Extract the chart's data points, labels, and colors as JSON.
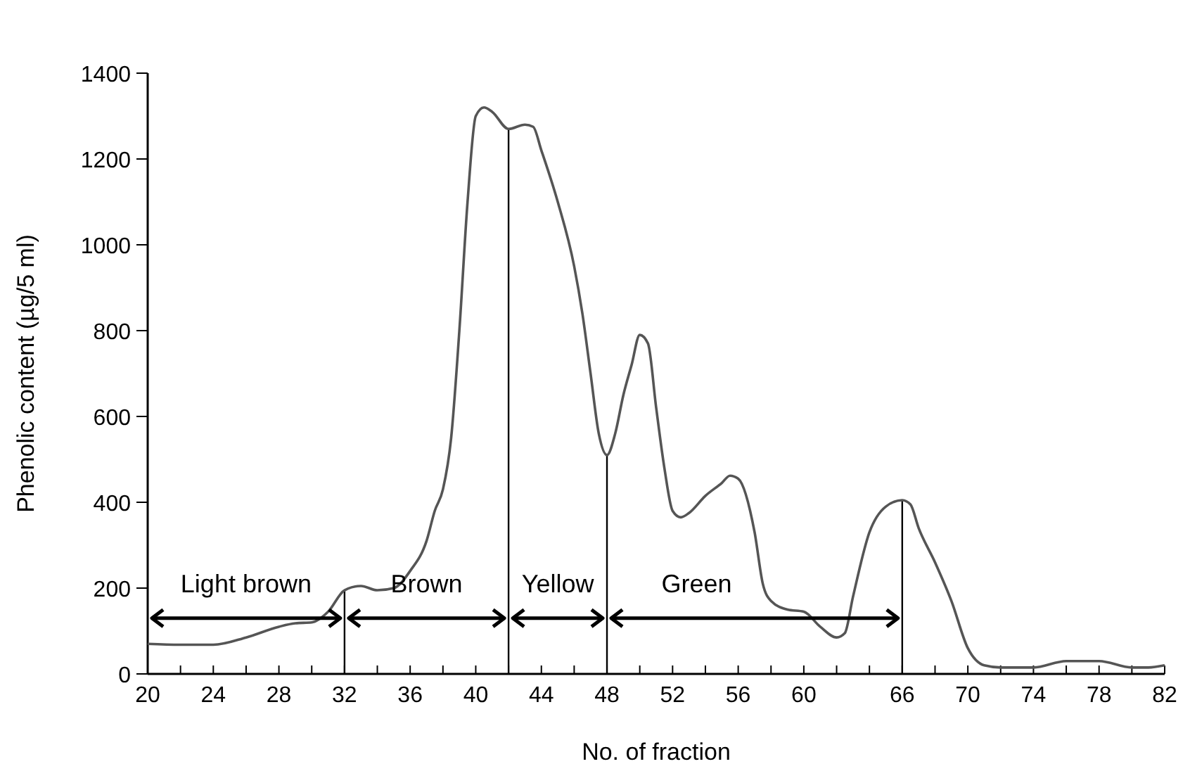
{
  "chart_data": {
    "type": "line",
    "xlabel": "No. of fraction",
    "ylabel": "Phenolic content (µg/5 ml)",
    "xlim": [
      20,
      82
    ],
    "ylim": [
      0,
      1400
    ],
    "xticks": [
      20,
      {
        "value": 22,
        "label": null
      },
      24,
      {
        "value": 26,
        "label": null
      },
      28,
      {
        "value": 30,
        "label": null
      },
      32,
      {
        "value": 34,
        "label": null
      },
      36,
      {
        "value": 38,
        "label": null
      },
      40,
      {
        "value": 42,
        "label": null
      },
      44,
      {
        "value": 46,
        "label": null
      },
      48,
      {
        "value": 50,
        "label": null
      },
      52,
      {
        "value": 54,
        "label": null
      },
      56,
      {
        "value": 58,
        "label": null
      },
      60,
      {
        "value": 62,
        "label": null
      },
      {
        "value": 64,
        "label": null
      },
      66,
      {
        "value": 68,
        "label": null
      },
      70,
      {
        "value": 72,
        "label": null
      },
      74,
      {
        "value": 76,
        "label": null
      },
      78,
      {
        "value": 80,
        "label": null
      },
      82
    ],
    "yticks": [
      0,
      200,
      400,
      600,
      800,
      1000,
      1200,
      1400
    ],
    "grid": false,
    "marker": "none",
    "line_style": "solid",
    "series": [
      {
        "color": "#555555",
        "x": [
          20,
          22,
          24,
          26,
          28,
          29,
          30,
          31,
          32,
          33,
          34,
          35,
          36,
          37,
          37.5,
          38,
          38.5,
          39,
          39.5,
          40,
          40.5,
          41,
          42,
          43,
          43.5,
          44,
          45,
          46,
          46.5,
          47,
          47.5,
          48,
          48.5,
          49,
          49.5,
          50,
          50.5,
          51,
          51.5,
          52,
          52.5,
          53,
          54,
          55,
          55.5,
          56,
          57,
          57.5,
          58,
          59,
          60,
          61,
          62,
          62.5,
          63,
          64,
          65,
          66,
          66.5,
          67,
          68,
          69,
          70,
          71,
          72,
          74,
          76,
          78,
          80,
          81,
          82
        ],
        "values": [
          70,
          68,
          68,
          85,
          110,
          118,
          120,
          145,
          195,
          205,
          195,
          200,
          240,
          310,
          380,
          430,
          550,
          800,
          1100,
          1300,
          1320,
          1310,
          1270,
          1280,
          1275,
          1220,
          1100,
          950,
          840,
          700,
          560,
          510,
          560,
          650,
          720,
          790,
          770,
          620,
          480,
          380,
          365,
          375,
          415,
          445,
          462,
          455,
          330,
          210,
          170,
          150,
          145,
          110,
          85,
          95,
          180,
          330,
          390,
          405,
          395,
          340,
          260,
          170,
          60,
          20,
          15,
          15,
          30,
          30,
          15,
          15,
          20
        ]
      }
    ],
    "ref_lines": [
      {
        "axis": "x",
        "value": 32,
        "color": "#000000"
      },
      {
        "axis": "x",
        "value": 42,
        "color": "#000000"
      },
      {
        "axis": "x",
        "value": 48,
        "color": "#000000"
      },
      {
        "axis": "x",
        "value": 66,
        "color": "#000000"
      }
    ],
    "annotations": [
      {
        "text": "Light brown",
        "x": 32,
        "y": 130
      },
      {
        "text": "Brown",
        "x": 42,
        "y": 130
      },
      {
        "text": "Yellow",
        "x": 48,
        "y": 130
      },
      "Green"
    ]
  }
}
